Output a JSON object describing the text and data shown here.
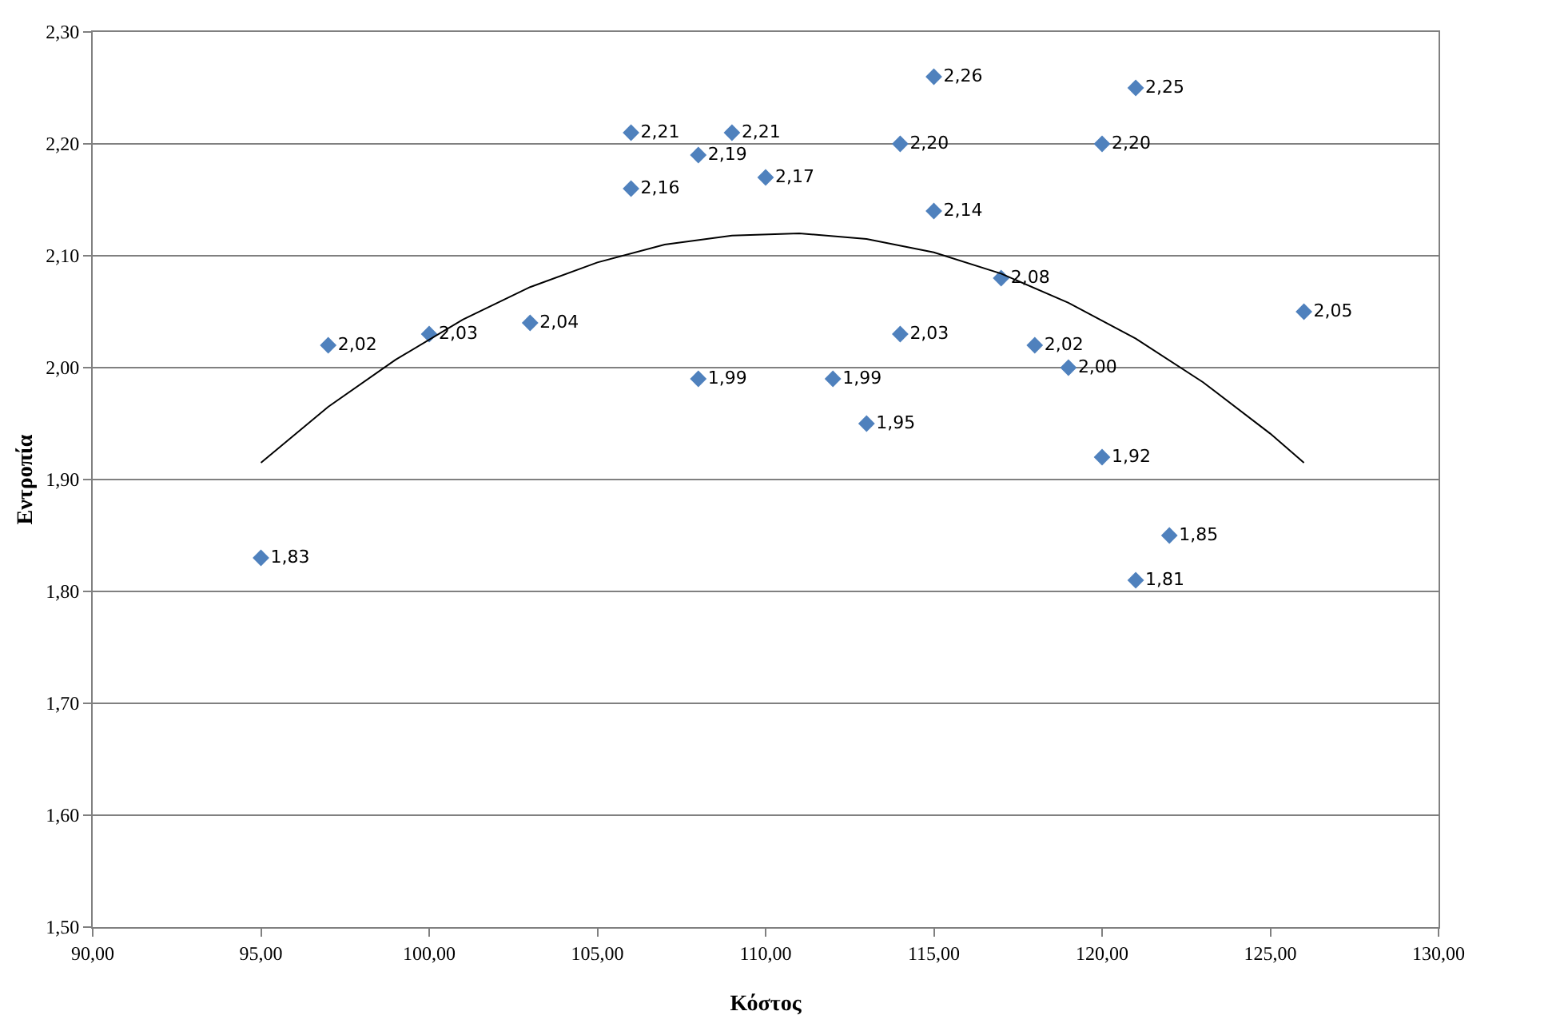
{
  "chart_data": {
    "type": "scatter",
    "xlabel": "Κόστος",
    "ylabel": "Εντροπία",
    "xlim": [
      90,
      130
    ],
    "xticks": [
      {
        "value": 90,
        "label": "90,00"
      },
      {
        "value": 95,
        "label": "95,00"
      },
      {
        "value": 100,
        "label": "100,00"
      },
      {
        "value": 105,
        "label": "105,00"
      },
      {
        "value": 110,
        "label": "110,00"
      },
      {
        "value": 115,
        "label": "115,00"
      },
      {
        "value": 120,
        "label": "120,00"
      },
      {
        "value": 125,
        "label": "125,00"
      },
      {
        "value": 130,
        "label": "130,00"
      }
    ],
    "ylim": [
      1.5,
      2.3
    ],
    "yticks": [
      {
        "value": 1.5,
        "label": "1,50"
      },
      {
        "value": 1.6,
        "label": "1,60"
      },
      {
        "value": 1.7,
        "label": "1,70"
      },
      {
        "value": 1.8,
        "label": "1,80"
      },
      {
        "value": 1.9,
        "label": "1,90"
      },
      {
        "value": 2.0,
        "label": "2,00"
      },
      {
        "value": 2.1,
        "label": "2,10"
      },
      {
        "value": 2.2,
        "label": "2,20"
      },
      {
        "value": 2.3,
        "label": "2,30"
      }
    ],
    "grid": "y",
    "series": [
      {
        "type": "scatter",
        "marker": "diamond",
        "color": "#4f81bd",
        "x": [
          95,
          97,
          100,
          103,
          106,
          106,
          108,
          108,
          109,
          110,
          112,
          113,
          114,
          114,
          115,
          115,
          117,
          118,
          119,
          120,
          120,
          121,
          121,
          122,
          126
        ],
        "values": [
          1.83,
          2.02,
          2.03,
          2.04,
          2.21,
          2.16,
          2.19,
          1.99,
          2.21,
          2.17,
          1.99,
          1.95,
          2.2,
          2.03,
          2.26,
          2.14,
          2.08,
          2.02,
          2.0,
          2.2,
          1.92,
          2.25,
          1.81,
          1.85,
          2.05
        ],
        "value_labels": [
          "1,83",
          "2,02",
          "2,03",
          "2,04",
          "2,21",
          "2,16",
          "2,19",
          "1,99",
          "2,21",
          "2,17",
          "1,99",
          "1,95",
          "2,20",
          "2,03",
          "2,26",
          "2,14",
          "2,08",
          "2,02",
          "2,00",
          "2,20",
          "1,92",
          "2,25",
          "1,81",
          "1,85",
          "2,05"
        ]
      },
      {
        "type": "line",
        "marker": "none",
        "color": "#000000",
        "x": [
          95,
          97,
          99,
          101,
          103,
          105,
          107,
          109,
          111,
          113,
          115,
          117,
          119,
          121,
          123,
          125,
          126
        ],
        "values": [
          1.915,
          1.965,
          2.007,
          2.043,
          2.072,
          2.094,
          2.11,
          2.118,
          2.12,
          2.115,
          2.103,
          2.084,
          2.058,
          2.026,
          1.987,
          1.941,
          1.915
        ]
      }
    ]
  }
}
